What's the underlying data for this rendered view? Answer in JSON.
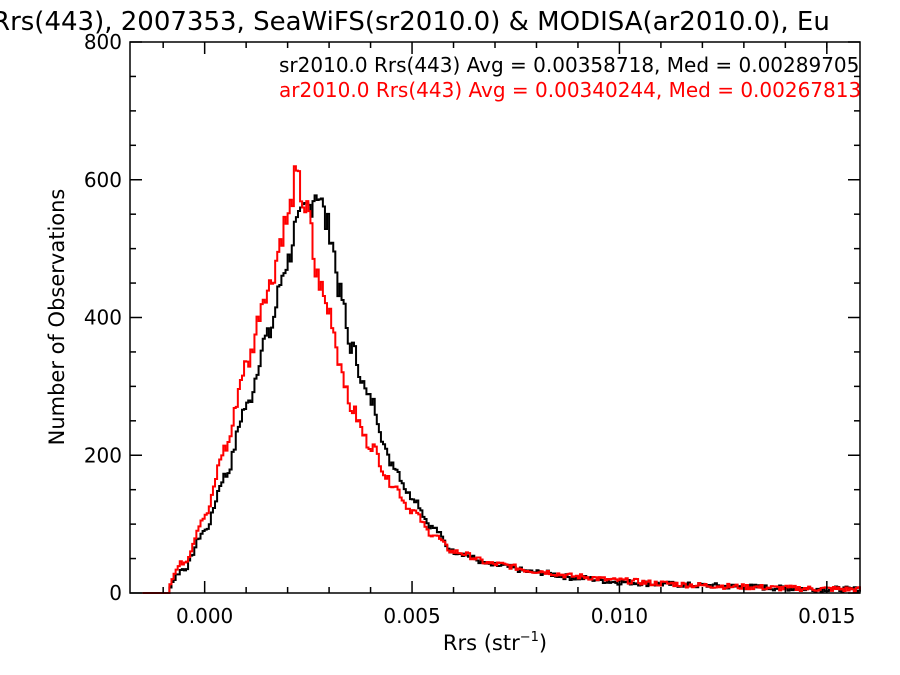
{
  "colors": {
    "series_sr": "#000000",
    "series_ar": "#ff0000",
    "axes": "#000000",
    "background": "#ffffff"
  },
  "chart_data": {
    "type": "histogram",
    "title": "Rrs(443), 2007353, SeaWiFS(sr2010.0) & MODISA(ar2010.0), Eu",
    "xlabel": "Rrs (str",
    "xlabel_sup": "−1",
    "xlabel_close": ")",
    "ylabel": "Number of Observations",
    "xlim": [
      -0.0018,
      0.0158
    ],
    "ylim": [
      0,
      800
    ],
    "xticks": [
      0.0,
      0.005,
      0.01,
      0.015
    ],
    "xtick_labels": [
      "0.000",
      "0.005",
      "0.010",
      "0.015"
    ],
    "yticks": [
      0,
      200,
      400,
      600,
      800
    ],
    "ytick_labels": [
      "0",
      "200",
      "400",
      "600",
      "800"
    ],
    "grid": false,
    "legend_position": "top-right",
    "bin_centers": [
      -0.001,
      -0.0005,
      0.0,
      0.0005,
      0.001,
      0.0015,
      0.002,
      0.0022,
      0.0025,
      0.0027,
      0.003,
      0.0033,
      0.0035,
      0.004,
      0.0045,
      0.005,
      0.0055,
      0.006,
      0.007,
      0.008,
      0.009,
      0.01,
      0.011,
      0.012,
      0.013,
      0.014,
      0.015,
      0.0158
    ],
    "series": [
      {
        "name": "sr2010.0 Rrs(443) Avg = 0.00358718, Med = 0.00289705",
        "values": [
          2,
          35,
          90,
          170,
          270,
          370,
          480,
          530,
          560,
          585,
          530,
          430,
          360,
          280,
          190,
          140,
          95,
          60,
          40,
          30,
          22,
          16,
          13,
          11,
          9,
          7,
          6,
          5
        ]
      },
      {
        "name": "ar2010.0 Rrs(443) Avg = 0.00340244, Med = 0.00267813",
        "values": [
          5,
          45,
          110,
          210,
          330,
          440,
          540,
          600,
          550,
          460,
          410,
          330,
          270,
          215,
          160,
          120,
          85,
          60,
          42,
          32,
          24,
          18,
          14,
          11,
          9,
          7,
          6,
          5
        ]
      }
    ]
  }
}
